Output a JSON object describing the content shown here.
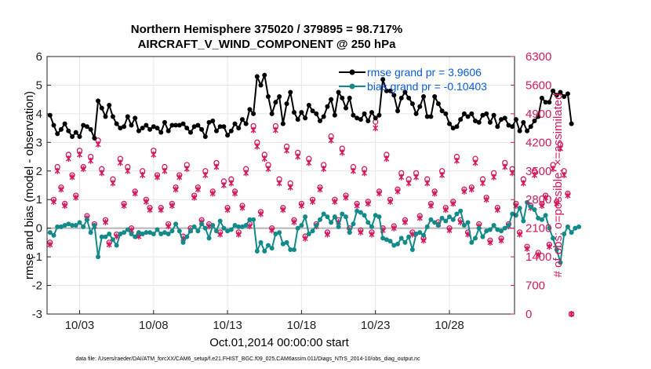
{
  "chart_data": {
    "type": "line",
    "title": "Northern Hemisphere 375020 / 379895 = 98.717%",
    "subtitle": "AIRCRAFT_V_WIND_COMPONENT @ 250 hPa",
    "xlabel": "Oct.01,2014 00:00:00 start",
    "ylabel": "rmse and bias (model - observation)",
    "y2label": "# of obs: o=possible; ×=assimilated",
    "footnote": "data file: /Users/raeder/DAI/ATM_forcXX/CAM6_setup/f.e21.FHIST_BGC.f09_025.CAM6assim.011/Diags_NTrS_2014-10/obs_diag_output.nc",
    "xlim": [
      0.8,
      32.4
    ],
    "ylim": [
      -3,
      6
    ],
    "y2lim": [
      0,
      6300
    ],
    "grid": true,
    "legend_position": "top-right",
    "colors": {
      "rmse": "#000000",
      "bias": "#128a8a",
      "obs": "#d4185e",
      "legend_text": "#0a5bd6",
      "zero_line": "#b4b4b4"
    },
    "x_ticks": [
      3,
      8,
      13,
      18,
      23,
      28
    ],
    "x_tick_labels": [
      "10/03",
      "10/08",
      "10/13",
      "10/18",
      "10/23",
      "10/28"
    ],
    "y_ticks": [
      -3,
      -2,
      -1,
      0,
      1,
      2,
      3,
      4,
      5,
      6
    ],
    "y_tick_labels": [
      "-3",
      "-2",
      "-1",
      "0",
      "1",
      "2",
      "3",
      "4",
      "5",
      "6"
    ],
    "y2_ticks": [
      0,
      700,
      1400,
      2100,
      2800,
      3500,
      4200,
      4900,
      5600,
      6300
    ],
    "y2_tick_labels": [
      "0",
      "700",
      "1400",
      "2100",
      "2800",
      "3500",
      "4200",
      "4900",
      "5600",
      "6300"
    ],
    "x_start": 1.0,
    "x_step": 0.25,
    "series": [
      {
        "name": "rmse grand pr = 3.9606",
        "values": [
          3.95,
          3.6,
          3.3,
          3.45,
          3.65,
          3.4,
          3.2,
          3.35,
          3.2,
          3.6,
          3.55,
          3.45,
          3.15,
          4.45,
          4.2,
          3.9,
          4.3,
          3.9,
          3.65,
          3.5,
          3.55,
          3.9,
          3.6,
          3.85,
          3.4,
          3.5,
          3.6,
          3.45,
          3.55,
          3.5,
          3.35,
          3.7,
          3.4,
          3.6,
          3.6,
          3.6,
          3.65,
          3.5,
          3.35,
          3.55,
          3.6,
          3.45,
          3.2,
          3.7,
          3.75,
          3.4,
          3.55,
          3.55,
          3.25,
          3.4,
          3.65,
          3.5,
          3.8,
          3.65,
          4.15,
          4.0,
          5.3,
          5.0,
          5.35,
          4.6,
          4.0,
          4.4,
          4.6,
          3.65,
          4.35,
          4.75,
          4.05,
          3.8,
          4.05,
          3.85,
          4.3,
          4.1,
          4.0,
          3.75,
          3.9,
          4.25,
          4.5,
          3.95,
          4.75,
          4.55,
          4.2,
          4.55,
          3.95,
          3.85,
          3.8,
          4.0,
          3.75,
          4.05,
          3.85,
          3.95,
          5.2,
          4.8,
          4.8,
          4.65,
          4.1,
          4.55,
          4.75,
          4.55,
          4.35,
          4.0,
          4.25,
          4.6,
          3.9,
          3.9,
          4.6,
          4.35,
          4.1,
          4.0,
          3.65,
          3.5,
          3.55,
          3.8,
          4.0,
          3.9,
          4.0,
          3.75,
          3.7,
          3.95,
          4.0,
          3.7,
          3.95,
          3.55,
          3.8,
          3.85,
          3.6,
          3.55,
          3.8,
          3.4,
          3.7,
          3.4,
          3.55,
          3.75,
          3.9,
          4.55,
          4.4,
          4.4,
          4.8,
          4.65,
          4.75,
          4.6,
          4.7,
          3.65
        ]
      },
      {
        "name": "bias grand pr = -0.10403",
        "values": [
          -0.15,
          -0.25,
          0.05,
          0.05,
          0.1,
          0.15,
          0.1,
          0.1,
          0.2,
          0.05,
          0.3,
          -0.15,
          0.1,
          -1.0,
          -0.3,
          -0.3,
          -0.2,
          -0.4,
          -0.6,
          -0.2,
          -0.15,
          -0.05,
          -0.2,
          -0.3,
          -0.15,
          -0.2,
          -0.15,
          -0.15,
          -0.2,
          -0.05,
          -0.2,
          -0.15,
          -0.2,
          -0.1,
          0.15,
          -0.1,
          -0.5,
          -0.3,
          -0.1,
          0.05,
          -0.1,
          0.15,
          0.0,
          -0.35,
          0.1,
          -0.1,
          0.25,
          0.0,
          -0.1,
          -0.05,
          0.1,
          0.05,
          0.05,
          0.1,
          0.3,
          0.3,
          -0.8,
          -0.5,
          -0.8,
          -0.6,
          -0.7,
          -0.2,
          -0.15,
          -0.55,
          -0.5,
          -0.75,
          -0.75,
          0.0,
          0.1,
          0.4,
          -0.2,
          -0.1,
          0.1,
          0.3,
          0.5,
          0.4,
          0.2,
          0.4,
          0.05,
          0.5,
          0.4,
          -0.15,
          0.15,
          0.6,
          0.55,
          0.45,
          0.2,
          0.05,
          0.45,
          0.4,
          -0.35,
          -0.4,
          -0.45,
          -0.6,
          -0.55,
          -0.35,
          -0.5,
          -0.3,
          -0.75,
          -0.2,
          -0.15,
          -0.25,
          0.05,
          0.3,
          0.2,
          0.1,
          0.35,
          0.25,
          0.4,
          0.3,
          0.5,
          0.6,
          0.1,
          0.2,
          -0.5,
          -0.35,
          0.0,
          -0.3,
          -0.1,
          -0.05,
          0.1,
          -0.05,
          -0.1,
          0.0,
          0.1,
          0.5,
          0.45,
          0.7,
          0.25,
          0.9,
          0.75,
          0.65,
          0.35,
          0.3,
          0.45,
          0.0,
          -0.35,
          -0.75,
          -1.2,
          -0.2,
          0.05,
          -0.15,
          0.0,
          0.05
        ]
      }
    ],
    "obs_possible": {
      "name": "possible",
      "values": [
        1750,
        2800,
        3600,
        3100,
        2700,
        3900,
        3400,
        2900,
        4000,
        3600,
        2400,
        3850,
        2200,
        4250,
        3550,
        2300,
        1750,
        3300,
        1950,
        3800,
        2700,
        3600,
        2100,
        3000,
        1950,
        3500,
        2800,
        2600,
        4000,
        3400,
        2600,
        3600,
        2200,
        2700,
        3100,
        3400,
        1900,
        3650,
        2100,
        2900,
        3100,
        2300,
        3500,
        2200,
        3000,
        3700,
        2000,
        3250,
        2600,
        3300,
        3000,
        2000,
        2650,
        3550,
        2200,
        4600,
        4200,
        2500,
        3900,
        3650,
        2100,
        4600,
        3300,
        2600,
        4100,
        3200,
        2300,
        3950,
        2700,
        1900,
        3800,
        2800,
        2200,
        3100,
        3650,
        2000,
        4350,
        2800,
        2300,
        4050,
        2900,
        2100,
        3600,
        2700,
        2050,
        3550,
        2750,
        2000,
        4700,
        3000,
        2100,
        3900,
        2800,
        2150,
        3050,
        3450,
        2300,
        3300,
        2000,
        3450,
        2400,
        1850,
        3300,
        2700,
        3000,
        2250,
        3500,
        2600,
        2100,
        2750,
        3850,
        2300,
        3050,
        2000,
        3100,
        3800,
        2200,
        3300,
        2850,
        1800,
        3450,
        2600,
        1850,
        3700,
        2200,
        3550,
        2700,
        2000,
        3300,
        1650,
        2650,
        3500,
        1500,
        2700,
        2900,
        1700,
        3650,
        2750,
        4150,
        3500,
        2950,
        0
      ]
    },
    "obs_assimilated": {
      "name": "assimilated",
      "values": [
        1700,
        2750,
        3500,
        3050,
        2650,
        3800,
        3350,
        2850,
        3900,
        3550,
        2350,
        3750,
        2150,
        4150,
        3450,
        2250,
        1700,
        3200,
        1900,
        3700,
        2650,
        3500,
        2050,
        2950,
        1900,
        3400,
        2750,
        2550,
        3900,
        3350,
        2550,
        3500,
        2150,
        2650,
        3050,
        3350,
        1850,
        3550,
        2050,
        2850,
        3050,
        2250,
        3400,
        2150,
        2950,
        3600,
        1950,
        3150,
        2550,
        3200,
        2950,
        1950,
        2600,
        3450,
        2150,
        4500,
        4100,
        2450,
        3800,
        3550,
        2050,
        4500,
        3200,
        2550,
        4000,
        3100,
        2250,
        3850,
        2650,
        1850,
        3700,
        2750,
        2150,
        3050,
        3550,
        1950,
        4250,
        2750,
        2250,
        3950,
        2850,
        2050,
        3500,
        2650,
        2000,
        3450,
        2700,
        1950,
        4550,
        2950,
        2050,
        3800,
        2750,
        2100,
        3000,
        3350,
        2250,
        3200,
        1950,
        3350,
        2350,
        1800,
        3200,
        2650,
        2950,
        2200,
        3400,
        2550,
        2050,
        2700,
        3750,
        2250,
        3000,
        1950,
        3050,
        3700,
        2150,
        3200,
        2800,
        1750,
        3350,
        2550,
        1800,
        3600,
        2150,
        3450,
        2650,
        1950,
        3200,
        1600,
        2600,
        3400,
        1450,
        2650,
        2850,
        1650,
        3550,
        2700,
        4050,
        3400,
        2900,
        0
      ]
    }
  }
}
